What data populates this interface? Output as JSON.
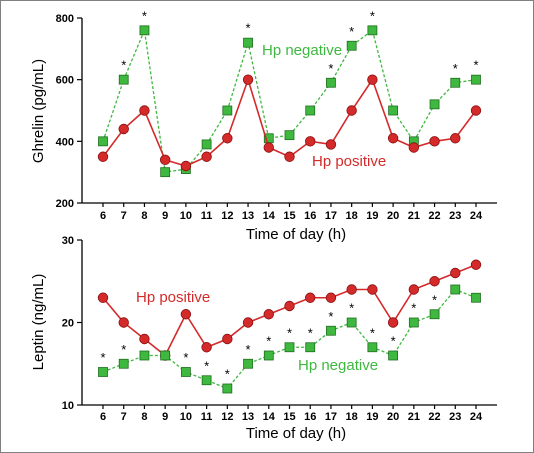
{
  "chart_data": [
    {
      "type": "line",
      "ylabel": "Ghrelin (pg/mL)",
      "xlabel": "Time of day (h)",
      "x": [
        6,
        7,
        8,
        9,
        10,
        11,
        12,
        13,
        14,
        15,
        16,
        17,
        18,
        19,
        20,
        21,
        22,
        23,
        24
      ],
      "x_ticks": [
        "6",
        "7",
        "8",
        "9",
        "10",
        "11",
        "12",
        "13",
        "14",
        "15",
        "16",
        "17",
        "18",
        "19",
        "20",
        "21",
        "22",
        "23",
        "24"
      ],
      "ylim": [
        200,
        800
      ],
      "y_ticks": [
        "200",
        "400",
        "600",
        "800"
      ],
      "series": [
        {
          "name": "Hp negative",
          "color": "#3fb83f",
          "marker": "square",
          "line": "dashed",
          "values": [
            400,
            600,
            760,
            300,
            310,
            390,
            500,
            720,
            410,
            420,
            500,
            590,
            710,
            760,
            500,
            400,
            520,
            590,
            600
          ]
        },
        {
          "name": "Hp positive",
          "color": "#d42a2a",
          "marker": "circle",
          "line": "solid",
          "values": [
            350,
            440,
            500,
            340,
            320,
            350,
            410,
            600,
            380,
            350,
            400,
            390,
            500,
            600,
            410,
            380,
            400,
            410,
            500
          ]
        }
      ],
      "significance_marker": "*",
      "significant_x": [
        7,
        8,
        13,
        17,
        18,
        19,
        23,
        24
      ]
    },
    {
      "type": "line",
      "ylabel": "Leptin (ng/mL)",
      "xlabel": "Time of day (h)",
      "x": [
        6,
        7,
        8,
        9,
        10,
        11,
        12,
        13,
        14,
        15,
        16,
        17,
        18,
        19,
        20,
        21,
        22,
        23,
        24
      ],
      "x_ticks": [
        "6",
        "7",
        "8",
        "9",
        "10",
        "11",
        "12",
        "13",
        "14",
        "15",
        "16",
        "17",
        "18",
        "19",
        "20",
        "21",
        "22",
        "23",
        "24"
      ],
      "ylim": [
        10,
        30
      ],
      "y_ticks": [
        "10",
        "20",
        "30"
      ],
      "series": [
        {
          "name": "Hp positive",
          "color": "#d42a2a",
          "marker": "circle",
          "line": "solid",
          "values": [
            23,
            20,
            18,
            16,
            21,
            17,
            18,
            20,
            21,
            22,
            23,
            23,
            24,
            24,
            20,
            24,
            25,
            26,
            27
          ]
        },
        {
          "name": "Hp negative",
          "color": "#3fb83f",
          "marker": "square",
          "line": "dashed",
          "values": [
            14,
            15,
            16,
            16,
            14,
            13,
            12,
            15,
            16,
            17,
            17,
            19,
            20,
            17,
            16,
            20,
            21,
            24,
            23
          ]
        }
      ],
      "significance_marker": "*",
      "significant_x": [
        6,
        7,
        10,
        11,
        12,
        13,
        14,
        15,
        16,
        17,
        18,
        19,
        20,
        21,
        22
      ]
    }
  ]
}
